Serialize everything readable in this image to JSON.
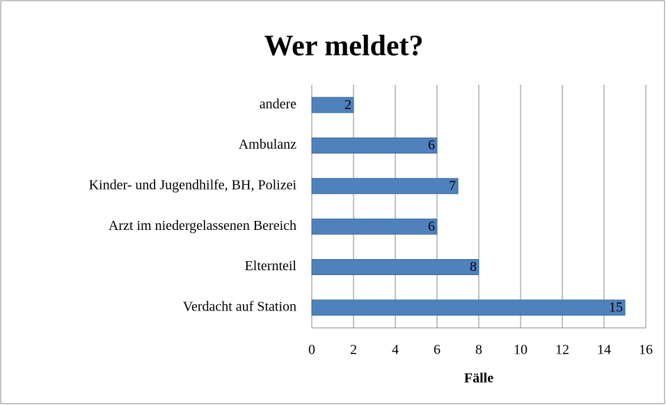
{
  "chart_data": {
    "type": "bar",
    "orientation": "horizontal",
    "title": "Wer meldet?",
    "categories": [
      "andere",
      "Ambulanz",
      "Kinder- und Jugendhilfe, BH, Polizei",
      "Arzt im niedergelassenen Bereich",
      "Elternteil",
      "Verdacht auf Station"
    ],
    "values": [
      2,
      6,
      7,
      6,
      8,
      15
    ],
    "color": "#4f81bd",
    "xlabel": "Fälle",
    "xlim": [
      0,
      16
    ],
    "xticks": [
      0,
      2,
      4,
      6,
      8,
      10,
      12,
      14,
      16
    ],
    "grid": true
  }
}
